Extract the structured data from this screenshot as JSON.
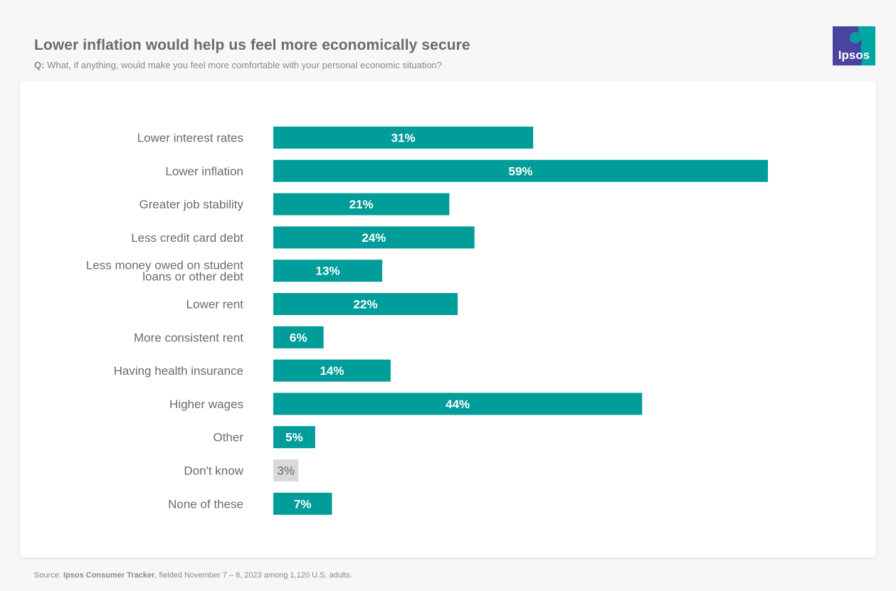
{
  "header": {
    "title": "Lower inflation would help us feel more economically secure",
    "question_prefix": "Q:",
    "question_text": " What, if anything, would make you feel more comfortable with your personal economic situation?"
  },
  "logo": {
    "text": "Ipsos",
    "icon": "ipsos-logo-icon"
  },
  "footer": {
    "source_prefix": "Source: ",
    "source_name": "Ipsos Consumer Tracker",
    "source_rest": ", fielded November 7 – 8, 2023 among 1,120 U.S. adults."
  },
  "colors": {
    "bar": "#009d9a",
    "bar_muted": "#d9d9d9",
    "text": "#6b6b6b",
    "logo_blue": "#4a43a0",
    "logo_teal": "#00a6a2"
  },
  "chart_data": {
    "type": "bar",
    "orientation": "horizontal",
    "title": "Lower inflation would help us feel more economically secure",
    "categories": [
      "Lower interest rates",
      "Lower inflation",
      "Greater job stability",
      "Less credit card debt",
      "Less money owed on student loans or other debt",
      "Lower rent",
      "More consistent rent",
      "Having health insurance",
      "Higher wages",
      "Other",
      "Don't know",
      "None of these"
    ],
    "category_lines": [
      [
        "Lower interest rates"
      ],
      [
        "Lower inflation"
      ],
      [
        "Greater job stability"
      ],
      [
        "Less credit card debt"
      ],
      [
        "Less money owed on student",
        "loans or other debt"
      ],
      [
        "Lower rent"
      ],
      [
        "More consistent rent"
      ],
      [
        "Having health insurance"
      ],
      [
        "Higher wages"
      ],
      [
        "Other"
      ],
      [
        "Don't know"
      ],
      [
        "None of these"
      ]
    ],
    "values": [
      31,
      59,
      21,
      24,
      13,
      22,
      6,
      14,
      44,
      5,
      3,
      7
    ],
    "value_labels": [
      "31%",
      "59%",
      "21%",
      "24%",
      "13%",
      "22%",
      "6%",
      "14%",
      "44%",
      "5%",
      "3%",
      "7%"
    ],
    "muted": [
      false,
      false,
      false,
      false,
      false,
      false,
      false,
      false,
      false,
      false,
      true,
      false
    ],
    "unit": "%",
    "xlim": [
      0,
      59
    ],
    "xlabel": "",
    "ylabel": "",
    "grid": false,
    "legend": "none"
  }
}
